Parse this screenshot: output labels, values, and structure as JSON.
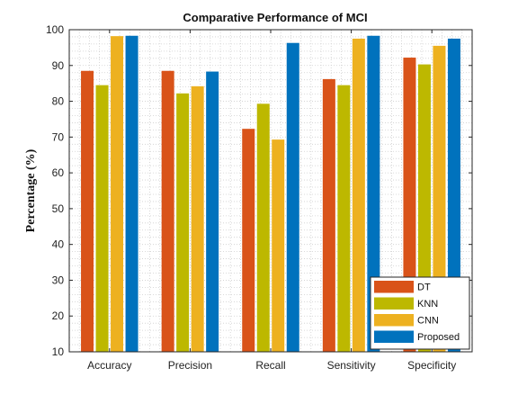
{
  "chart_data": {
    "type": "bar",
    "title": "Comparative Performance of MCI",
    "xlabel": "",
    "ylabel": "Percentage (%)",
    "ylim": [
      10,
      100
    ],
    "yticks": [
      10,
      20,
      30,
      40,
      50,
      60,
      70,
      80,
      90,
      100
    ],
    "grid": "dotted minor grid",
    "legend_position": "bottom-right",
    "categories": [
      "Accuracy",
      "Precision",
      "Recall",
      "Sensitivity",
      "Specificity"
    ],
    "series": [
      {
        "name": "DT",
        "color": "#D95319",
        "values": [
          88.5,
          88.5,
          72.3,
          86.2,
          92.2
        ]
      },
      {
        "name": "KNN",
        "color": "#BDB800",
        "values": [
          84.5,
          82.2,
          79.3,
          84.5,
          90.3
        ]
      },
      {
        "name": "CNN",
        "color": "#EDB120",
        "values": [
          98.2,
          84.2,
          69.3,
          97.5,
          95.5
        ]
      },
      {
        "name": "Proposed",
        "color": "#0072BD",
        "values": [
          98.3,
          88.3,
          96.3,
          98.3,
          97.5
        ]
      }
    ]
  }
}
